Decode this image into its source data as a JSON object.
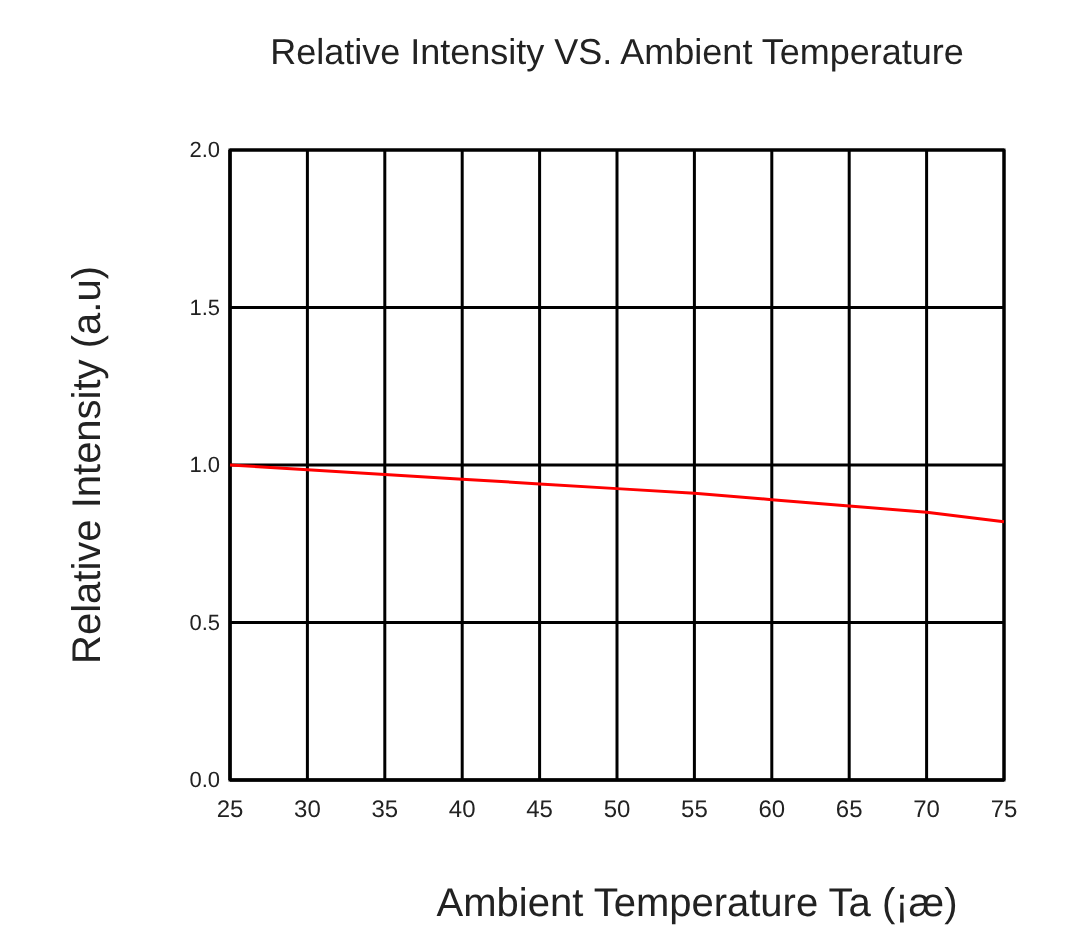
{
  "chart_data": {
    "type": "line",
    "title": "Relative Intensity VS. Ambient Temperature",
    "xlabel": "Ambient Temperature Ta (¡æ)",
    "ylabel": "Relative Intensity (a.u)",
    "x": [
      25,
      30,
      35,
      40,
      45,
      50,
      55,
      60,
      65,
      70,
      75
    ],
    "series": [
      {
        "color": "#ff0000",
        "values": [
          1.0,
          0.985,
          0.97,
          0.955,
          0.94,
          0.925,
          0.91,
          0.89,
          0.87,
          0.85,
          0.82
        ]
      }
    ],
    "xlim": [
      25,
      75
    ],
    "xticks": [
      25,
      30,
      35,
      40,
      45,
      50,
      55,
      60,
      65,
      70,
      75
    ],
    "ylim": [
      0,
      2
    ],
    "yticks": [
      {
        "value": 0,
        "label": "0.0"
      },
      {
        "value": 0.5,
        "label": "0.5"
      },
      {
        "value": 1,
        "label": "1.0"
      },
      {
        "value": 1.5,
        "label": "1.5"
      },
      {
        "value": 2,
        "label": "2.0"
      }
    ],
    "grid": true,
    "marker": "none",
    "line_style": "solid"
  }
}
